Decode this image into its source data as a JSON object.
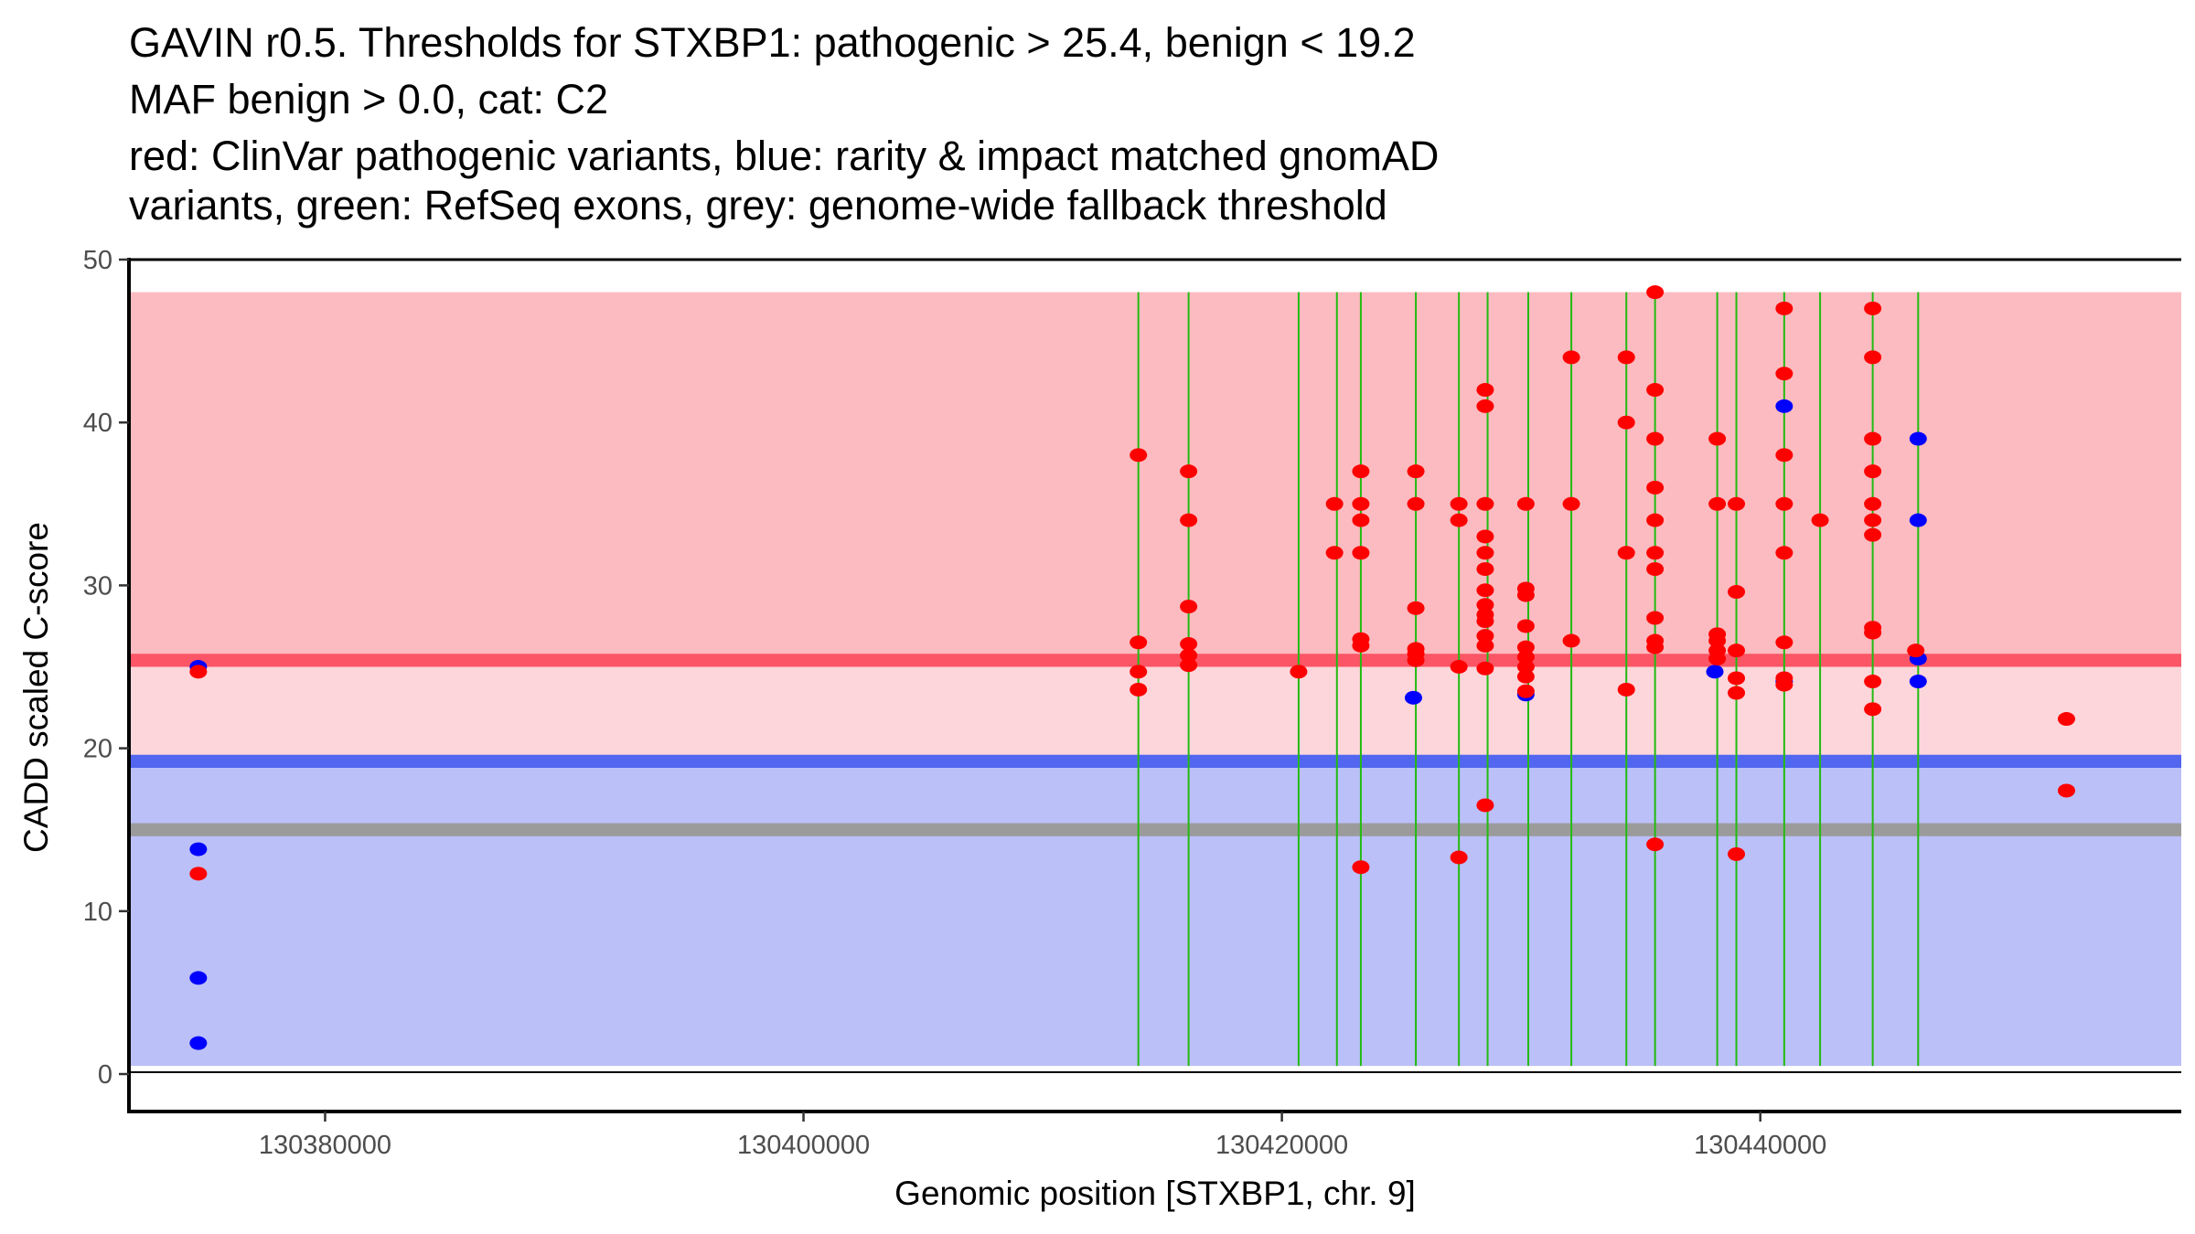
{
  "chart_data": {
    "type": "scatter",
    "title_lines": [
      "GAVIN r0.5. Thresholds for STXBP1: pathogenic > 25.4, benign < 19.2",
      "MAF benign > 0.0, cat: C2",
      "red: ClinVar pathogenic variants, blue: rarity & impact matched gnomAD",
      "variants, green: RefSeq exons, grey: genome-wide fallback threshold"
    ],
    "xlabel": "Genomic position [STXBP1, chr. 9]",
    "ylabel": "CADD scaled C-score",
    "xlim": [
      130371800,
      130457600
    ],
    "ylim": [
      -2.3,
      50
    ],
    "x_ticks": [
      {
        "value": 130380000,
        "label": "130380000"
      },
      {
        "value": 130400000,
        "label": "130400000"
      },
      {
        "value": 130420000,
        "label": "130420000"
      },
      {
        "value": 130440000,
        "label": "130440000"
      }
    ],
    "y_ticks": [
      {
        "value": 0,
        "label": "0"
      },
      {
        "value": 10,
        "label": "10"
      },
      {
        "value": 20,
        "label": "20"
      },
      {
        "value": 30,
        "label": "30"
      },
      {
        "value": 40,
        "label": "40"
      },
      {
        "value": 50,
        "label": "50"
      }
    ],
    "grid": false,
    "thresholds": {
      "pathogenic": 25.4,
      "benign": 19.2,
      "genome_wide_fallback": 15,
      "pathogenic_region_top": 48,
      "benign_region_bottom": 0.5,
      "colors": {
        "pathogenic_region": "#fcbbc0",
        "pathogenic_line": "#fb5566",
        "intermediate_region": "#fdd6db",
        "benign_line": "#5266f0",
        "benign_region": "#bbc0f8",
        "fallback_line": "#9b9b9b"
      }
    },
    "exons": {
      "color": "#22bb11",
      "positions": [
        130414000,
        130416100,
        130420700,
        130422300,
        130423300,
        130425600,
        130427400,
        130428600,
        130430300,
        130432100,
        130434400,
        130435600,
        130438200,
        130439000,
        130441000,
        130442500,
        130444700,
        130446600
      ]
    },
    "series": [
      {
        "name": "ClinVar pathogenic variants",
        "color": "#ff0000",
        "points": [
          [
            130374700,
            24.7
          ],
          [
            130374700,
            12.3
          ],
          [
            130414000,
            38
          ],
          [
            130414000,
            26.5
          ],
          [
            130414000,
            24.7
          ],
          [
            130414000,
            23.6
          ],
          [
            130416100,
            37
          ],
          [
            130416100,
            34
          ],
          [
            130416100,
            28.7
          ],
          [
            130416100,
            26.4
          ],
          [
            130416100,
            25.7
          ],
          [
            130416100,
            25.1
          ],
          [
            130420700,
            24.7
          ],
          [
            130422200,
            35
          ],
          [
            130422200,
            32
          ],
          [
            130423300,
            37
          ],
          [
            130423300,
            35
          ],
          [
            130423300,
            34
          ],
          [
            130423300,
            32
          ],
          [
            130423300,
            26.7
          ],
          [
            130423300,
            26.3
          ],
          [
            130423300,
            12.7
          ],
          [
            130425600,
            37
          ],
          [
            130425600,
            35
          ],
          [
            130425600,
            28.6
          ],
          [
            130425600,
            26.1
          ],
          [
            130425600,
            25.8
          ],
          [
            130425600,
            25.4
          ],
          [
            130427400,
            35
          ],
          [
            130427400,
            34
          ],
          [
            130427400,
            25
          ],
          [
            130427400,
            13.3
          ],
          [
            130428500,
            42
          ],
          [
            130428500,
            41
          ],
          [
            130428500,
            35
          ],
          [
            130428500,
            33
          ],
          [
            130428500,
            32
          ],
          [
            130428500,
            31
          ],
          [
            130428500,
            29.7
          ],
          [
            130428500,
            28.8
          ],
          [
            130428500,
            28.2
          ],
          [
            130428500,
            27.8
          ],
          [
            130428500,
            26.9
          ],
          [
            130428500,
            26.3
          ],
          [
            130428500,
            24.9
          ],
          [
            130428500,
            16.5
          ],
          [
            130430200,
            35
          ],
          [
            130430200,
            29.8
          ],
          [
            130430200,
            29.4
          ],
          [
            130430200,
            27.5
          ],
          [
            130430200,
            26.2
          ],
          [
            130430200,
            25.6
          ],
          [
            130430200,
            25
          ],
          [
            130430200,
            24.4
          ],
          [
            130430200,
            23.5
          ],
          [
            130432100,
            44
          ],
          [
            130432100,
            35
          ],
          [
            130432100,
            26.6
          ],
          [
            130434400,
            44
          ],
          [
            130434400,
            40
          ],
          [
            130434400,
            32
          ],
          [
            130434400,
            23.6
          ],
          [
            130435600,
            48
          ],
          [
            130435600,
            42
          ],
          [
            130435600,
            39
          ],
          [
            130435600,
            36
          ],
          [
            130435600,
            34
          ],
          [
            130435600,
            32
          ],
          [
            130435600,
            31
          ],
          [
            130435600,
            28
          ],
          [
            130435600,
            26.6
          ],
          [
            130435600,
            26.2
          ],
          [
            130435600,
            14.1
          ],
          [
            130438200,
            39
          ],
          [
            130438200,
            35
          ],
          [
            130438200,
            27
          ],
          [
            130438200,
            26.6
          ],
          [
            130438200,
            26
          ],
          [
            130438200,
            25.5
          ],
          [
            130439000,
            35
          ],
          [
            130439000,
            29.6
          ],
          [
            130439000,
            26
          ],
          [
            130439000,
            24.3
          ],
          [
            130439000,
            23.4
          ],
          [
            130439000,
            13.5
          ],
          [
            130441000,
            47
          ],
          [
            130441000,
            43
          ],
          [
            130441000,
            38
          ],
          [
            130441000,
            35
          ],
          [
            130441000,
            32
          ],
          [
            130441000,
            26.5
          ],
          [
            130441000,
            24.3
          ],
          [
            130441000,
            23.9
          ],
          [
            130442500,
            34
          ],
          [
            130444700,
            47
          ],
          [
            130444700,
            44
          ],
          [
            130444700,
            39
          ],
          [
            130444700,
            37
          ],
          [
            130444700,
            35
          ],
          [
            130444700,
            34
          ],
          [
            130444700,
            33.1
          ],
          [
            130444700,
            27.4
          ],
          [
            130444700,
            27.1
          ],
          [
            130444700,
            24.1
          ],
          [
            130444700,
            22.4
          ],
          [
            130446500,
            26
          ],
          [
            130452800,
            21.8
          ],
          [
            130452800,
            17.4
          ]
        ]
      },
      {
        "name": "rarity & impact matched gnomAD variants",
        "color": "#0000ff",
        "points": [
          [
            130374700,
            25.0
          ],
          [
            130374700,
            13.8
          ],
          [
            130374700,
            5.9
          ],
          [
            130374700,
            1.9
          ],
          [
            130425500,
            23.1
          ],
          [
            130430200,
            23.3
          ],
          [
            130438100,
            24.7
          ],
          [
            130441000,
            41
          ],
          [
            130441000,
            24.1
          ],
          [
            130446600,
            39
          ],
          [
            130446600,
            34
          ],
          [
            130446600,
            25.5
          ],
          [
            130446600,
            24.1
          ]
        ]
      }
    ]
  }
}
